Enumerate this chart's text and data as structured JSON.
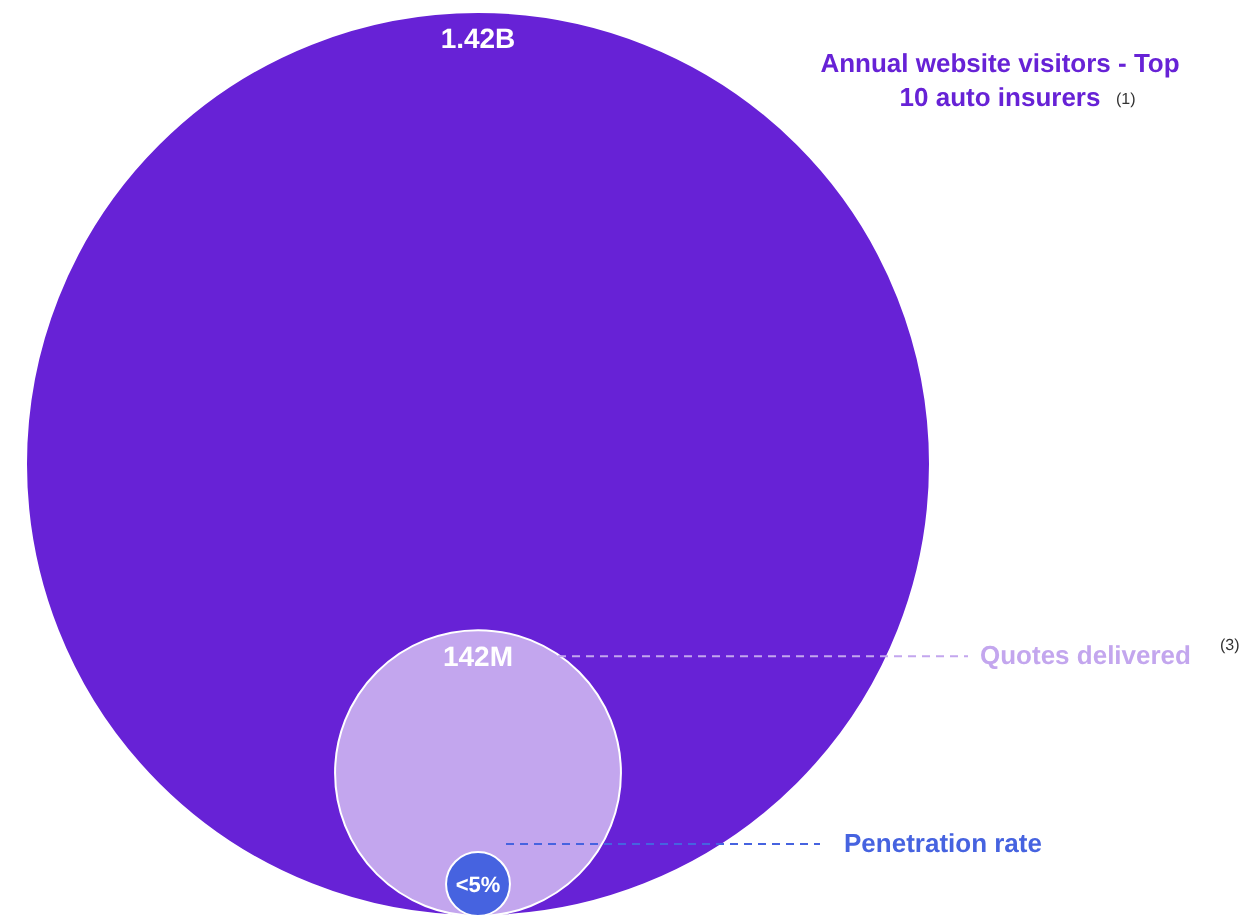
{
  "chart_data": {
    "type": "other",
    "categories": [
      "Annual website visitors - Top 10 auto insurers",
      "Quotes delivered",
      "Penetration rate"
    ],
    "values": [
      1420000000,
      142000000,
      5
    ],
    "value_labels": [
      "1.42B",
      "142M",
      "<5%"
    ],
    "colors": [
      "#6722d6",
      "#c3a6ee",
      "#4663e0"
    ],
    "annotations": [
      "(1)",
      "(3)"
    ]
  }
}
